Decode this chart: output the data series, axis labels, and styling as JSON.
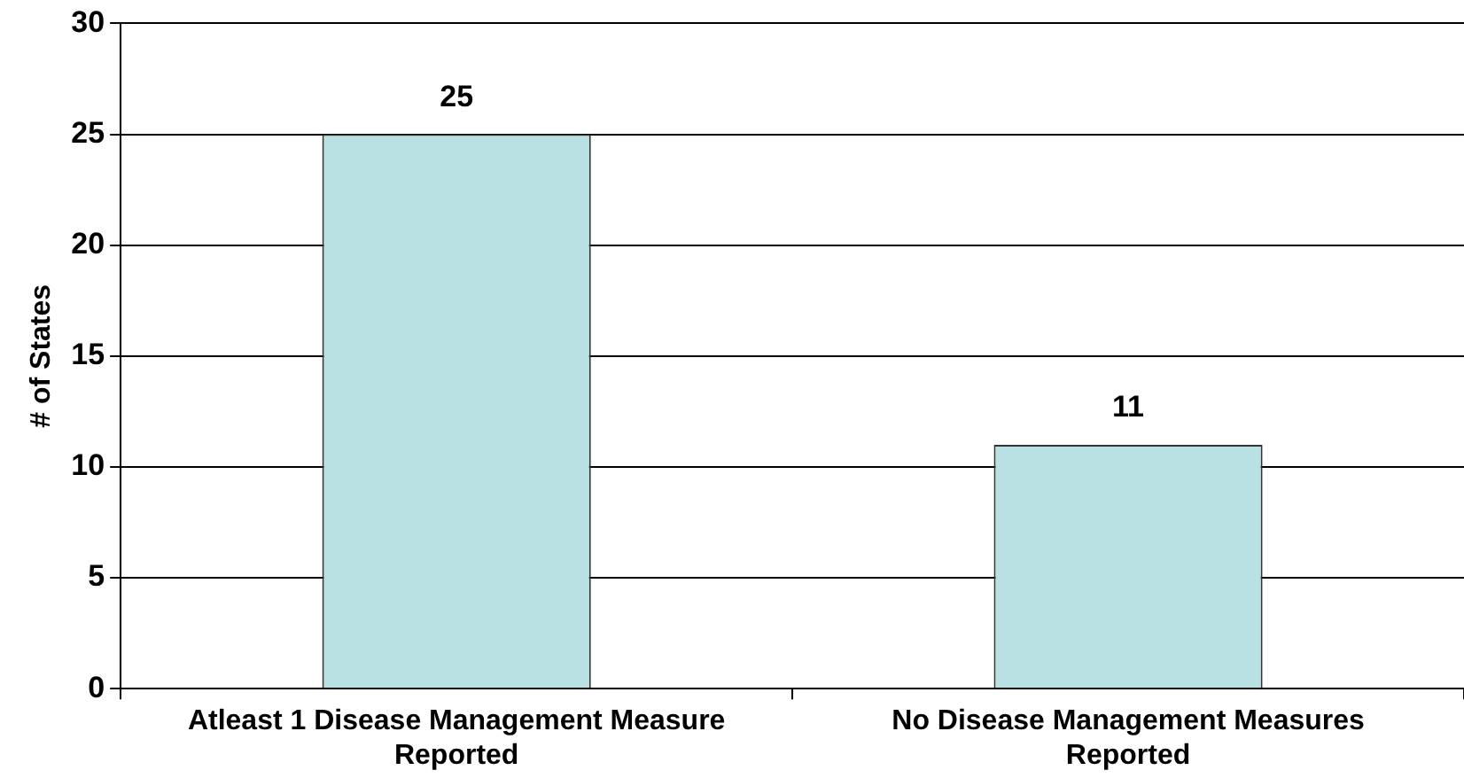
{
  "chart_data": {
    "type": "bar",
    "ylabel": "# of States",
    "categories": [
      "Atleast 1 Disease Management Measure Reported",
      "No Disease Management Measures Reported"
    ],
    "values": [
      25,
      11
    ],
    "color": "#b9e0e2",
    "ylim": [
      0,
      30
    ],
    "yticks": [
      0,
      5,
      10,
      15,
      20,
      25,
      30
    ],
    "grid": "y",
    "data_labels": true,
    "legend": false
  }
}
